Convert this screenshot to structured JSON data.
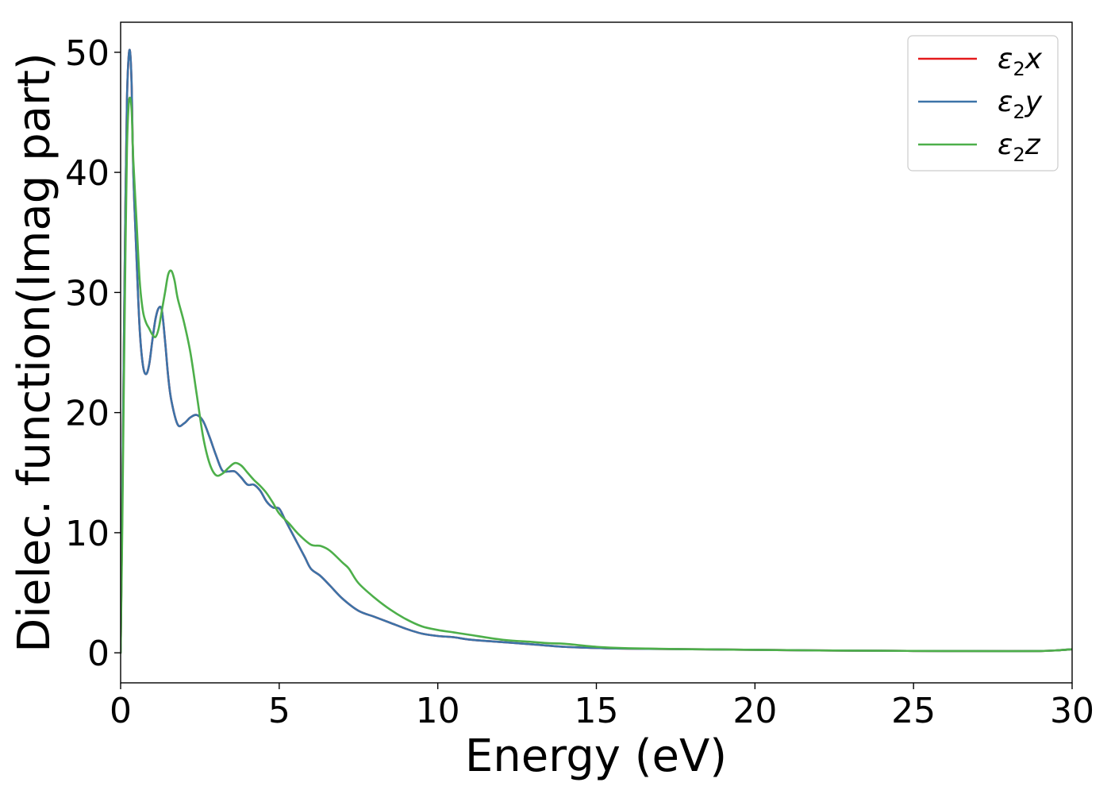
{
  "chart_data": {
    "type": "line",
    "xlabel": "Energy (eV)",
    "ylabel": "Dielec. function(Imag part)",
    "xlim": [
      0,
      30
    ],
    "ylim": [
      -2.5,
      52.5
    ],
    "xticks": [
      0,
      5,
      10,
      15,
      20,
      25,
      30
    ],
    "yticks": [
      0,
      10,
      20,
      30,
      40,
      50
    ],
    "xtick_labels": [
      "0",
      "5",
      "10",
      "15",
      "20",
      "25",
      "30"
    ],
    "ytick_labels": [
      "0",
      "10",
      "20",
      "30",
      "40",
      "50"
    ],
    "grid": false,
    "legend_position": "top-right",
    "series": [
      {
        "name": "ε₂x",
        "legend_base": "ε",
        "legend_sub": "2",
        "legend_var": "x",
        "color": "#e41a1c",
        "x": [
          0,
          0.05,
          0.1,
          0.15,
          0.2,
          0.25,
          0.3,
          0.35,
          0.4,
          0.5,
          0.6,
          0.7,
          0.8,
          0.9,
          1.0,
          1.1,
          1.2,
          1.3,
          1.4,
          1.5,
          1.6,
          1.8,
          2.0,
          2.2,
          2.4,
          2.6,
          2.8,
          3.0,
          3.2,
          3.4,
          3.6,
          3.8,
          4.0,
          4.2,
          4.4,
          4.6,
          4.8,
          5.0,
          5.2,
          5.5,
          5.8,
          6.0,
          6.3,
          6.6,
          7.0,
          7.5,
          8.0,
          8.5,
          9.0,
          9.5,
          10.0,
          10.5,
          11.0,
          12.0,
          13.0,
          14.0,
          15.0,
          16.0,
          18.0,
          20.0,
          22.0,
          24.0,
          26.0,
          28.0,
          29.0,
          29.5,
          30.0
        ],
        "values": [
          0,
          12,
          25,
          37,
          46,
          49.5,
          50,
          47,
          40,
          33,
          27,
          24,
          23.2,
          24,
          26,
          27.8,
          28.7,
          28.5,
          26,
          23,
          21,
          19,
          19.1,
          19.6,
          19.8,
          19.3,
          18,
          16.5,
          15.2,
          15.1,
          15.1,
          14.6,
          14.0,
          14.0,
          13.5,
          12.6,
          12.1,
          12.0,
          11.0,
          9.5,
          8.0,
          7.0,
          6.4,
          5.6,
          4.5,
          3.5,
          3.0,
          2.5,
          2.0,
          1.6,
          1.4,
          1.3,
          1.1,
          0.9,
          0.7,
          0.5,
          0.4,
          0.35,
          0.3,
          0.25,
          0.2,
          0.17,
          0.15,
          0.14,
          0.15,
          0.2,
          0.3
        ]
      },
      {
        "name": "ε₂y",
        "legend_base": "ε",
        "legend_sub": "2",
        "legend_var": "y",
        "color": "#3c73a8",
        "x": [
          0,
          0.05,
          0.1,
          0.15,
          0.2,
          0.25,
          0.3,
          0.35,
          0.4,
          0.5,
          0.6,
          0.7,
          0.8,
          0.9,
          1.0,
          1.1,
          1.2,
          1.3,
          1.4,
          1.5,
          1.6,
          1.8,
          2.0,
          2.2,
          2.4,
          2.6,
          2.8,
          3.0,
          3.2,
          3.4,
          3.6,
          3.8,
          4.0,
          4.2,
          4.4,
          4.6,
          4.8,
          5.0,
          5.2,
          5.5,
          5.8,
          6.0,
          6.3,
          6.6,
          7.0,
          7.5,
          8.0,
          8.5,
          9.0,
          9.5,
          10.0,
          10.5,
          11.0,
          12.0,
          13.0,
          14.0,
          15.0,
          16.0,
          18.0,
          20.0,
          22.0,
          24.0,
          26.0,
          28.0,
          29.0,
          29.5,
          30.0
        ],
        "values": [
          0,
          12,
          25,
          37,
          46,
          49.5,
          50,
          47,
          40,
          33,
          27,
          24,
          23.2,
          24,
          26,
          27.8,
          28.7,
          28.5,
          26,
          23,
          21,
          19,
          19.1,
          19.6,
          19.8,
          19.3,
          18,
          16.5,
          15.2,
          15.1,
          15.1,
          14.6,
          14.0,
          14.0,
          13.5,
          12.6,
          12.1,
          12.0,
          11.0,
          9.5,
          8.0,
          7.0,
          6.4,
          5.6,
          4.5,
          3.5,
          3.0,
          2.5,
          2.0,
          1.6,
          1.4,
          1.3,
          1.1,
          0.9,
          0.7,
          0.5,
          0.4,
          0.35,
          0.3,
          0.25,
          0.2,
          0.17,
          0.15,
          0.14,
          0.15,
          0.2,
          0.3
        ]
      },
      {
        "name": "ε₂z",
        "legend_base": "ε",
        "legend_sub": "2",
        "legend_var": "z",
        "color": "#4daf4a",
        "x": [
          0,
          0.05,
          0.1,
          0.15,
          0.2,
          0.25,
          0.3,
          0.35,
          0.4,
          0.5,
          0.6,
          0.7,
          0.8,
          0.9,
          1.0,
          1.1,
          1.2,
          1.3,
          1.4,
          1.5,
          1.6,
          1.7,
          1.8,
          2.0,
          2.2,
          2.4,
          2.6,
          2.8,
          3.0,
          3.2,
          3.4,
          3.6,
          3.8,
          4.0,
          4.2,
          4.4,
          4.6,
          4.8,
          5.0,
          5.3,
          5.6,
          6.0,
          6.3,
          6.6,
          7.0,
          7.2,
          7.5,
          8.0,
          8.5,
          9.0,
          9.5,
          10.0,
          10.5,
          11.0,
          12.0,
          13.0,
          13.5,
          14.0,
          15.0,
          16.0,
          18.0,
          20.0,
          22.0,
          24.0,
          26.0,
          28.0,
          29.0,
          29.5,
          30.0
        ],
        "values": [
          0,
          10,
          22,
          33,
          42,
          45.5,
          46.2,
          45,
          41,
          36,
          31,
          28.5,
          27.5,
          27,
          26.5,
          26.3,
          27,
          28.5,
          30,
          31.5,
          31.8,
          31,
          29.5,
          27.5,
          25,
          21.5,
          18,
          15.8,
          14.8,
          14.9,
          15.4,
          15.8,
          15.6,
          15.0,
          14.4,
          13.9,
          13.3,
          12.5,
          11.6,
          10.8,
          9.9,
          9.0,
          8.9,
          8.5,
          7.5,
          7.0,
          5.8,
          4.6,
          3.6,
          2.8,
          2.2,
          1.9,
          1.7,
          1.5,
          1.1,
          0.9,
          0.8,
          0.75,
          0.5,
          0.38,
          0.3,
          0.25,
          0.2,
          0.17,
          0.15,
          0.14,
          0.15,
          0.2,
          0.3
        ]
      }
    ]
  }
}
